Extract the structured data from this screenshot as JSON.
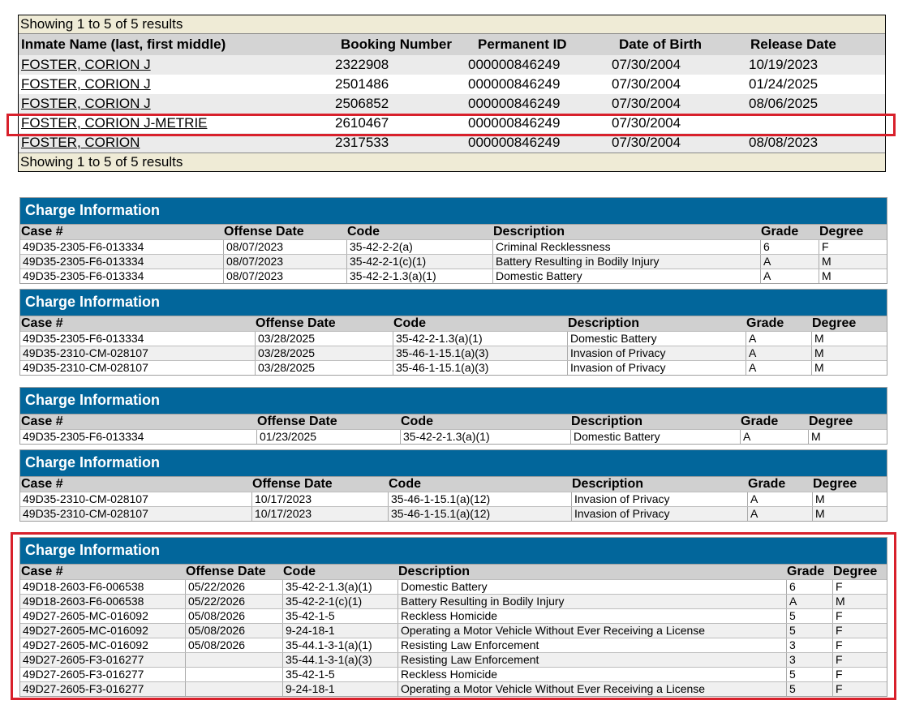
{
  "results": {
    "summary_top": "Showing 1 to 5 of 5 results",
    "summary_bottom": "Showing 1 to 5 of 5 results",
    "headers": [
      "Inmate Name (last, first middle)",
      "Booking Number",
      "Permanent ID",
      "Date of Birth",
      "Release Date"
    ],
    "rows": [
      {
        "name": "FOSTER, CORION J",
        "booking": "2322908",
        "perm_id": "000000846249",
        "dob": "07/30/2004",
        "release": "10/19/2023"
      },
      {
        "name": "FOSTER, CORION J",
        "booking": "2501486",
        "perm_id": "000000846249",
        "dob": "07/30/2004",
        "release": "01/24/2025"
      },
      {
        "name": "FOSTER, CORION J",
        "booking": "2506852",
        "perm_id": "000000846249",
        "dob": "07/30/2004",
        "release": "08/06/2025"
      },
      {
        "name": "FOSTER, CORION J-METRIE",
        "booking": "2610467",
        "perm_id": "000000846249",
        "dob": "07/30/2004",
        "release": ""
      },
      {
        "name": "FOSTER, CORION",
        "booking": "2317533",
        "perm_id": "000000846249",
        "dob": "07/30/2004",
        "release": "08/08/2023"
      }
    ]
  },
  "charges": [
    {
      "title": "Charge Information",
      "headers": [
        "Case #",
        "Offense Date",
        "Code",
        "Description",
        "Grade",
        "Degree"
      ],
      "rows": [
        [
          "49D35-2305-F6-013334",
          "08/07/2023",
          "35-42-2-2(a)",
          "Criminal Recklessness",
          "6",
          "F"
        ],
        [
          "49D35-2305-F6-013334",
          "08/07/2023",
          "35-42-2-1(c)(1)",
          "Battery Resulting in Bodily Injury",
          "A",
          "M"
        ],
        [
          "49D35-2305-F6-013334",
          "08/07/2023",
          "35-42-2-1.3(a)(1)",
          "Domestic Battery",
          "A",
          "M"
        ]
      ]
    },
    {
      "title": "Charge Information",
      "headers": [
        "Case #",
        "Offense Date",
        "Code",
        "Description",
        "Grade",
        "Degree"
      ],
      "rows": [
        [
          "49D35-2305-F6-013334",
          "03/28/2025",
          "35-42-2-1.3(a)(1)",
          "Domestic Battery",
          "A",
          "M"
        ],
        [
          "49D35-2310-CM-028107",
          "03/28/2025",
          "35-46-1-15.1(a)(3)",
          "Invasion of Privacy",
          "A",
          "M"
        ],
        [
          "49D35-2310-CM-028107",
          "03/28/2025",
          "35-46-1-15.1(a)(3)",
          "Invasion of Privacy",
          "A",
          "M"
        ]
      ]
    },
    {
      "title": "Charge Information",
      "headers": [
        "Case #",
        "Offense Date",
        "Code",
        "Description",
        "Grade",
        "Degree"
      ],
      "rows": [
        [
          "49D35-2305-F6-013334",
          "01/23/2025",
          "35-42-2-1.3(a)(1)",
          "Domestic Battery",
          "A",
          "M"
        ]
      ]
    },
    {
      "title": "Charge Information",
      "headers": [
        "Case #",
        "Offense Date",
        "Code",
        "Description",
        "Grade",
        "Degree"
      ],
      "rows": [
        [
          "49D35-2310-CM-028107",
          "10/17/2023",
          "35-46-1-15.1(a)(12)",
          "Invasion of Privacy",
          "A",
          "M"
        ],
        [
          "49D35-2310-CM-028107",
          "10/17/2023",
          "35-46-1-15.1(a)(12)",
          "Invasion of Privacy",
          "A",
          "M"
        ]
      ]
    },
    {
      "title": "Charge Information",
      "headers": [
        "Case #",
        "Offense Date",
        "Code",
        "Description",
        "Grade",
        "Degree"
      ],
      "rows": [
        [
          "49D18-2603-F6-006538",
          "05/22/2026",
          "35-42-2-1.3(a)(1)",
          "Domestic Battery",
          "6",
          "F"
        ],
        [
          "49D18-2603-F6-006538",
          "05/22/2026",
          "35-42-2-1(c)(1)",
          "Battery Resulting in Bodily Injury",
          "A",
          "M"
        ],
        [
          "49D27-2605-MC-016092",
          "05/08/2026",
          "35-42-1-5",
          "Reckless Homicide",
          "5",
          "F"
        ],
        [
          "49D27-2605-MC-016092",
          "05/08/2026",
          "9-24-18-1",
          "Operating a Motor Vehicle Without Ever Receiving a License",
          "5",
          "F"
        ],
        [
          "49D27-2605-MC-016092",
          "05/08/2026",
          "35-44.1-3-1(a)(1)",
          "Resisting Law Enforcement",
          "3",
          "F"
        ],
        [
          "49D27-2605-F3-016277",
          "",
          "35-44.1-3-1(a)(3)",
          "Resisting Law Enforcement",
          "3",
          "F"
        ],
        [
          "49D27-2605-F3-016277",
          "",
          "35-42-1-5",
          "Reckless Homicide",
          "5",
          "F"
        ],
        [
          "49D27-2605-F3-016277",
          "",
          "9-24-18-1",
          "Operating a Motor Vehicle Without Ever Receiving a License",
          "5",
          "F"
        ]
      ]
    }
  ],
  "colors": {
    "title_bar": "#02669b",
    "highlight": "#d8202b",
    "summary_bar": "#efebd6"
  }
}
